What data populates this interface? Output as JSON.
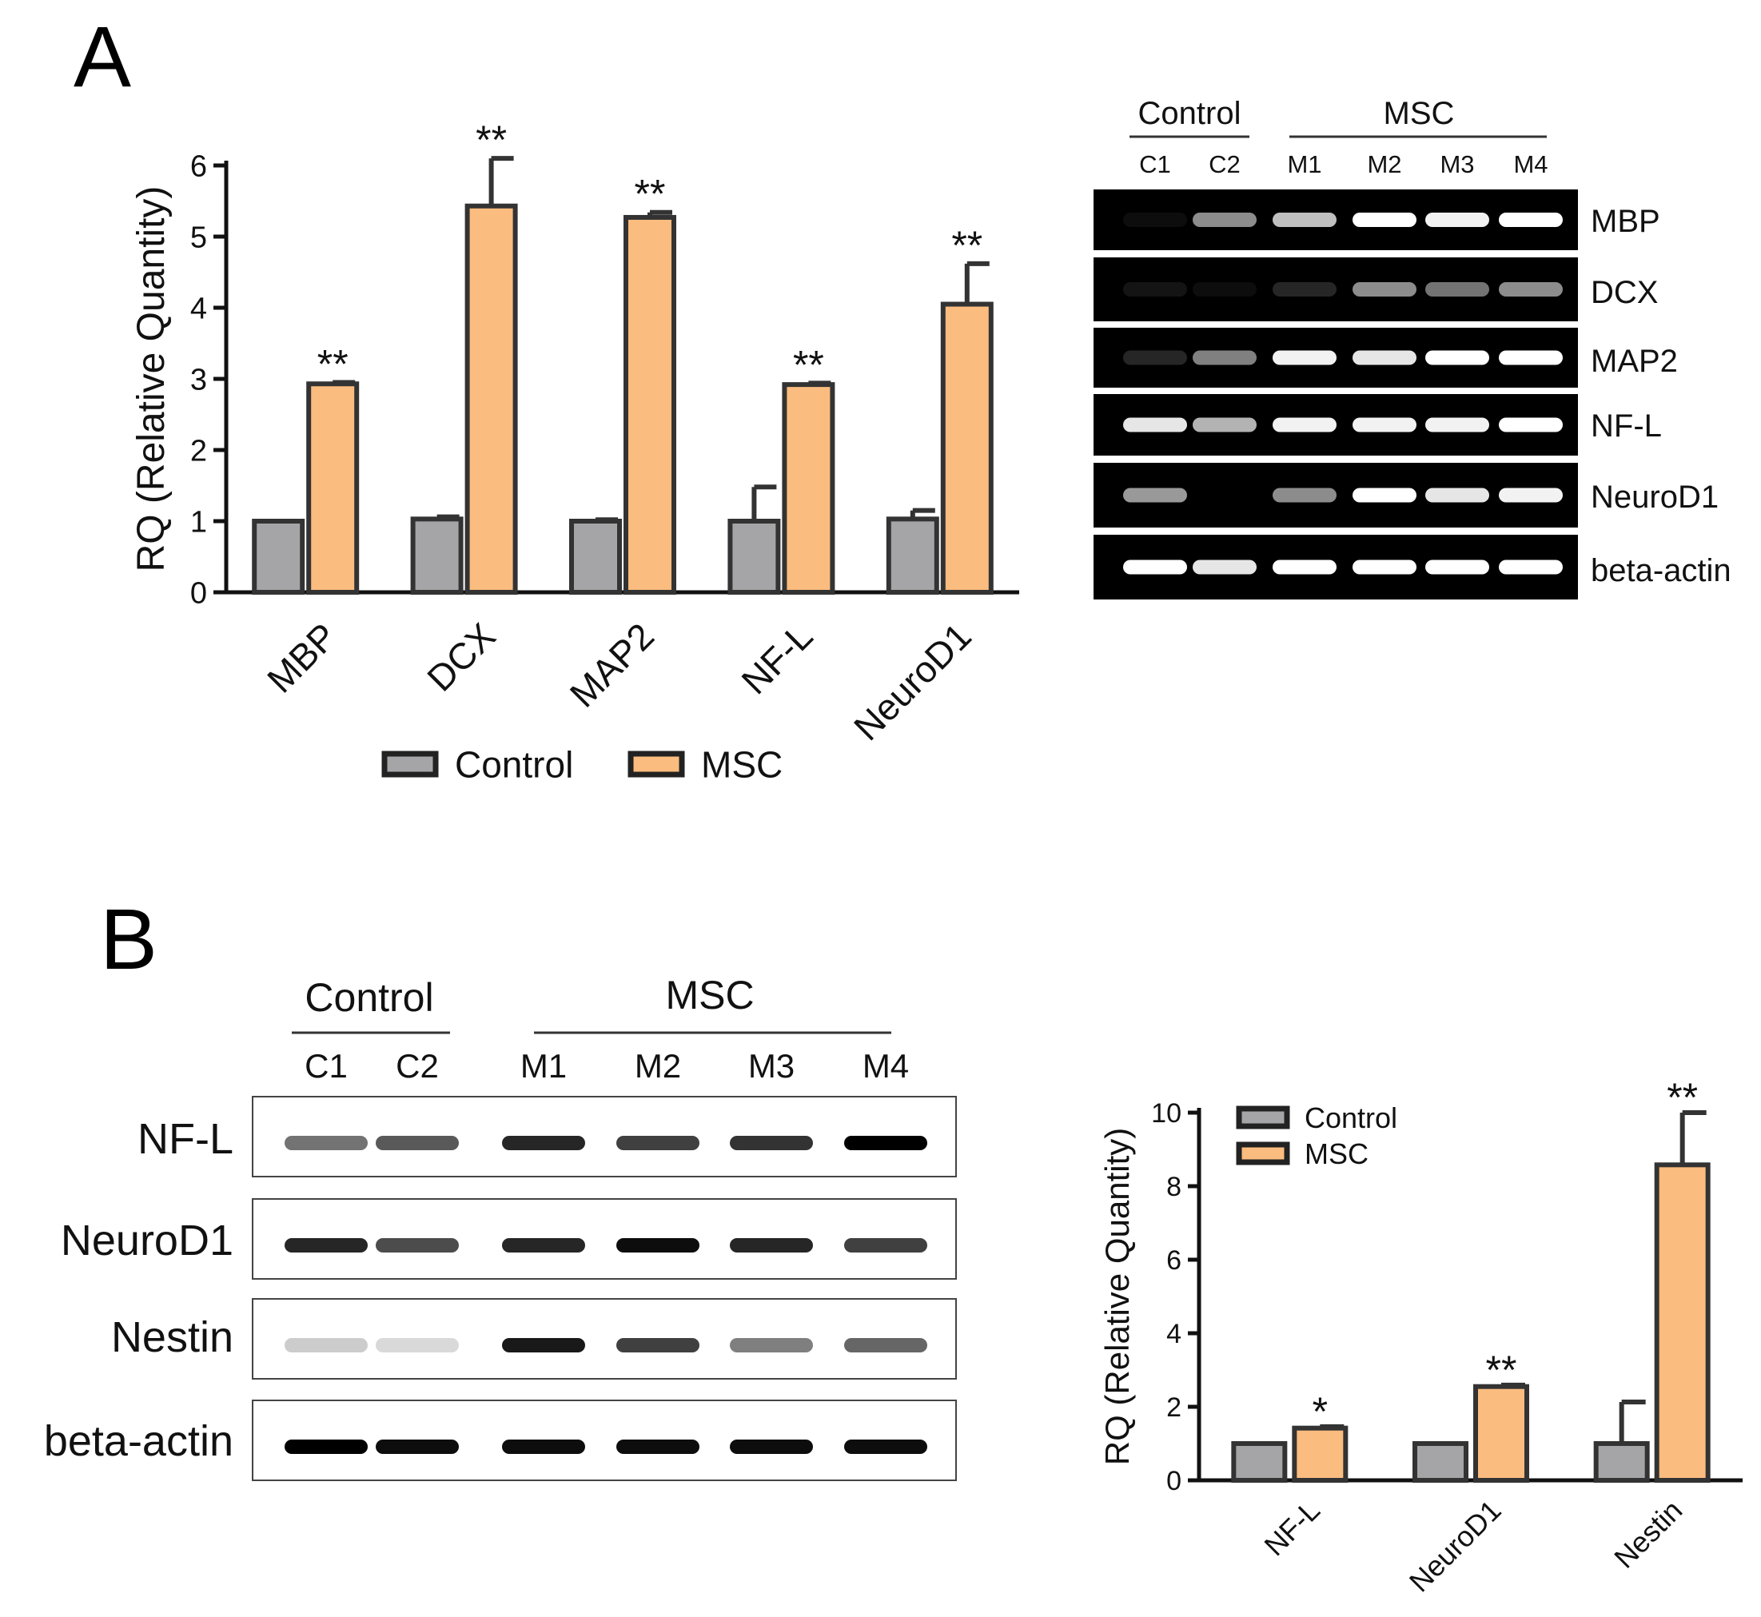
{
  "panels": {
    "a": {
      "letter": "A"
    },
    "b": {
      "letter": "B"
    }
  },
  "colors": {
    "control": "#a5a5a8",
    "msc": "#fbbc7f",
    "stroke": "#333333",
    "gel_bg": "#000000",
    "blot_bg": "#ffffff"
  },
  "chart_data": [
    {
      "id": "rq_panel_a",
      "type": "bar",
      "title": "",
      "xlabel": "",
      "ylabel": "RQ (Relative Quantity)",
      "ylim": [
        0,
        6
      ],
      "yticks": [
        "0",
        "1",
        "2",
        "3",
        "4",
        "5",
        "6"
      ],
      "categories": [
        "MBP",
        "DCX",
        "MAP2",
        "NF-L",
        "NeuroD1"
      ],
      "series": [
        {
          "name": "Control",
          "values": [
            1.0,
            1.03,
            1.0,
            1.0,
            1.03
          ],
          "errors": [
            0.0,
            0.03,
            0.02,
            0.48,
            0.12
          ]
        },
        {
          "name": "MSC",
          "values": [
            2.93,
            5.43,
            5.27,
            2.92,
            4.05
          ],
          "errors": [
            0.02,
            0.67,
            0.07,
            0.02,
            0.57
          ]
        }
      ],
      "significance": [
        "**",
        "**",
        "**",
        "**",
        "**"
      ],
      "legend_position": "bottom"
    },
    {
      "id": "rq_panel_b",
      "type": "bar",
      "title": "",
      "xlabel": "",
      "ylabel": "RQ (Relative Quantity)",
      "ylim": [
        0,
        10
      ],
      "yticks": [
        "0",
        "2",
        "4",
        "6",
        "8",
        "10"
      ],
      "categories": [
        "NF-L",
        "NeuroD1",
        "Nestin"
      ],
      "series": [
        {
          "name": "Control",
          "values": [
            1.0,
            1.0,
            1.0
          ],
          "errors": [
            0.0,
            0.0,
            1.13
          ]
        },
        {
          "name": "MSC",
          "values": [
            1.42,
            2.55,
            8.58
          ],
          "errors": [
            0.04,
            0.04,
            1.42
          ]
        }
      ],
      "significance": [
        "*",
        "**",
        "**"
      ],
      "legend_position": "top-left"
    }
  ],
  "gel": {
    "groups": [
      {
        "label": "Control"
      },
      {
        "label": "MSC"
      }
    ],
    "lanes": [
      "C1",
      "C2",
      "M1",
      "M2",
      "M3",
      "M4"
    ],
    "rows": [
      {
        "label": "MBP",
        "intensity": [
          0.05,
          0.55,
          0.75,
          1.0,
          0.95,
          1.0
        ]
      },
      {
        "label": "DCX",
        "intensity": [
          0.08,
          0.05,
          0.15,
          0.55,
          0.45,
          0.55
        ]
      },
      {
        "label": "MAP2",
        "intensity": [
          0.15,
          0.5,
          0.95,
          0.9,
          1.0,
          1.0
        ]
      },
      {
        "label": "NF-L",
        "intensity": [
          0.9,
          0.7,
          0.95,
          0.95,
          0.95,
          1.0
        ]
      },
      {
        "label": "NeuroD1",
        "intensity": [
          0.6,
          0.0,
          0.55,
          1.0,
          0.9,
          0.95
        ]
      },
      {
        "label": "beta-actin",
        "intensity": [
          1.0,
          0.9,
          1.0,
          1.0,
          1.0,
          1.0
        ]
      }
    ]
  },
  "blot": {
    "groups": [
      {
        "label": "Control"
      },
      {
        "label": "MSC"
      }
    ],
    "lanes": [
      "C1",
      "C2",
      "M1",
      "M2",
      "M3",
      "M4"
    ],
    "rows": [
      {
        "label": "NF-L",
        "intensity": [
          0.55,
          0.65,
          0.85,
          0.75,
          0.8,
          1.0
        ]
      },
      {
        "label": "NeuroD1",
        "intensity": [
          0.85,
          0.7,
          0.85,
          0.95,
          0.85,
          0.75
        ]
      },
      {
        "label": "Nestin",
        "intensity": [
          0.2,
          0.15,
          0.9,
          0.75,
          0.5,
          0.6
        ]
      },
      {
        "label": "beta-actin",
        "intensity": [
          1.0,
          0.95,
          0.95,
          0.95,
          0.95,
          0.95
        ]
      }
    ]
  }
}
